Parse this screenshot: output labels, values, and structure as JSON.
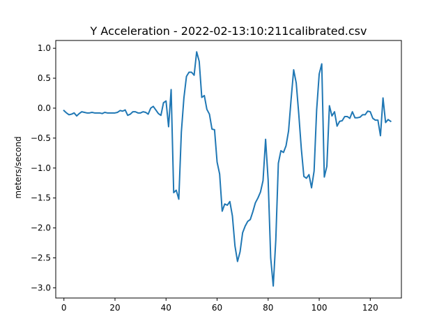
{
  "chart_data": {
    "type": "line",
    "title": "Y Acceleration - 2022-02-13:10:211calibrated.csv",
    "xlabel": "",
    "ylabel": "meters/second",
    "xlim": [
      -3.2,
      132.2
    ],
    "ylim": [
      -3.17,
      1.13
    ],
    "x_ticks": [
      0,
      20,
      40,
      60,
      80,
      100,
      120
    ],
    "y_ticks": [
      1.0,
      0.5,
      0.0,
      -0.5,
      -1.0,
      -1.5,
      -2.0,
      -2.5,
      -3.0
    ],
    "y_tick_labels": [
      "1.0",
      "0.5",
      "0.0",
      "−0.5",
      "−1.0",
      "−1.5",
      "−2.0",
      "−2.5",
      "−3.0"
    ],
    "grid": false,
    "line_color": "#1f77b4",
    "series": [
      {
        "x_start": 0,
        "values": [
          -0.04,
          -0.08,
          -0.11,
          -0.1,
          -0.08,
          -0.13,
          -0.09,
          -0.06,
          -0.07,
          -0.08,
          -0.08,
          -0.07,
          -0.08,
          -0.08,
          -0.08,
          -0.09,
          -0.07,
          -0.08,
          -0.08,
          -0.08,
          -0.08,
          -0.07,
          -0.04,
          -0.05,
          -0.03,
          -0.12,
          -0.1,
          -0.06,
          -0.06,
          -0.08,
          -0.08,
          -0.06,
          -0.07,
          -0.1,
          0.0,
          0.03,
          -0.03,
          -0.09,
          -0.12,
          0.09,
          0.12,
          -0.31,
          0.31,
          -1.41,
          -1.37,
          -1.52,
          -0.4,
          0.17,
          0.53,
          0.6,
          0.6,
          0.55,
          0.94,
          0.78,
          0.18,
          0.21,
          -0.02,
          -0.1,
          -0.35,
          -0.36,
          -0.9,
          -1.1,
          -1.72,
          -1.6,
          -1.62,
          -1.56,
          -1.8,
          -2.3,
          -2.56,
          -2.4,
          -2.08,
          -1.97,
          -1.89,
          -1.86,
          -1.73,
          -1.58,
          -1.5,
          -1.4,
          -1.21,
          -0.52,
          -1.2,
          -2.5,
          -2.97,
          -2.2,
          -0.92,
          -0.71,
          -0.74,
          -0.63,
          -0.38,
          0.15,
          0.64,
          0.42,
          -0.1,
          -0.68,
          -1.14,
          -1.17,
          -1.11,
          -1.33,
          -1.05,
          -0.03,
          0.57,
          0.74,
          -1.15,
          -0.97,
          0.04,
          -0.13,
          -0.06,
          -0.3,
          -0.22,
          -0.21,
          -0.14,
          -0.14,
          -0.17,
          -0.06,
          -0.16,
          -0.16,
          -0.15,
          -0.11,
          -0.11,
          -0.05,
          -0.06,
          -0.17,
          -0.2,
          -0.2,
          -0.46,
          0.17,
          -0.24,
          -0.19,
          -0.22
        ]
      }
    ]
  }
}
